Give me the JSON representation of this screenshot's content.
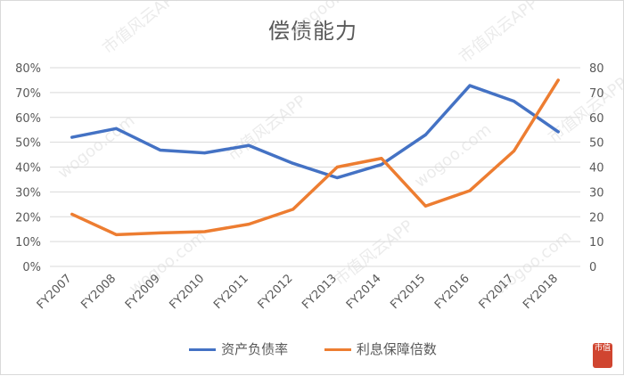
{
  "chart_data": {
    "type": "line",
    "title": "偿债能力",
    "categories": [
      "FY2007",
      "FY2008",
      "FY2009",
      "FY2010",
      "FY2011",
      "FY2012",
      "FY2013",
      "FY2014",
      "FY2015",
      "FY2016",
      "FY2017",
      "FY2018"
    ],
    "series": [
      {
        "name": "资产负债率",
        "axis": "left",
        "color": "#4472C4",
        "values": [
          52,
          55.5,
          46.8,
          45.7,
          48.7,
          41.5,
          35.7,
          41,
          53,
          72.8,
          66.5,
          54.2
        ]
      },
      {
        "name": "利息保障倍数",
        "axis": "right",
        "color": "#ED7D31",
        "values": [
          21,
          12.8,
          13.5,
          14,
          17,
          23,
          40,
          43.5,
          24.3,
          30.5,
          46.5,
          75
        ]
      }
    ],
    "y_left": {
      "ticks": [
        "0%",
        "10%",
        "20%",
        "30%",
        "40%",
        "50%",
        "60%",
        "70%",
        "80%"
      ],
      "ylim": [
        0,
        80
      ]
    },
    "y_right": {
      "ticks": [
        "0",
        "10",
        "20",
        "30",
        "40",
        "50",
        "60",
        "70",
        "80"
      ],
      "ylim": [
        0,
        80
      ]
    },
    "grid": true,
    "legend_position": "bottom"
  },
  "watermark": {
    "text": "市值风云APP",
    "site": "wogoo.com"
  },
  "seal_text": "市值"
}
